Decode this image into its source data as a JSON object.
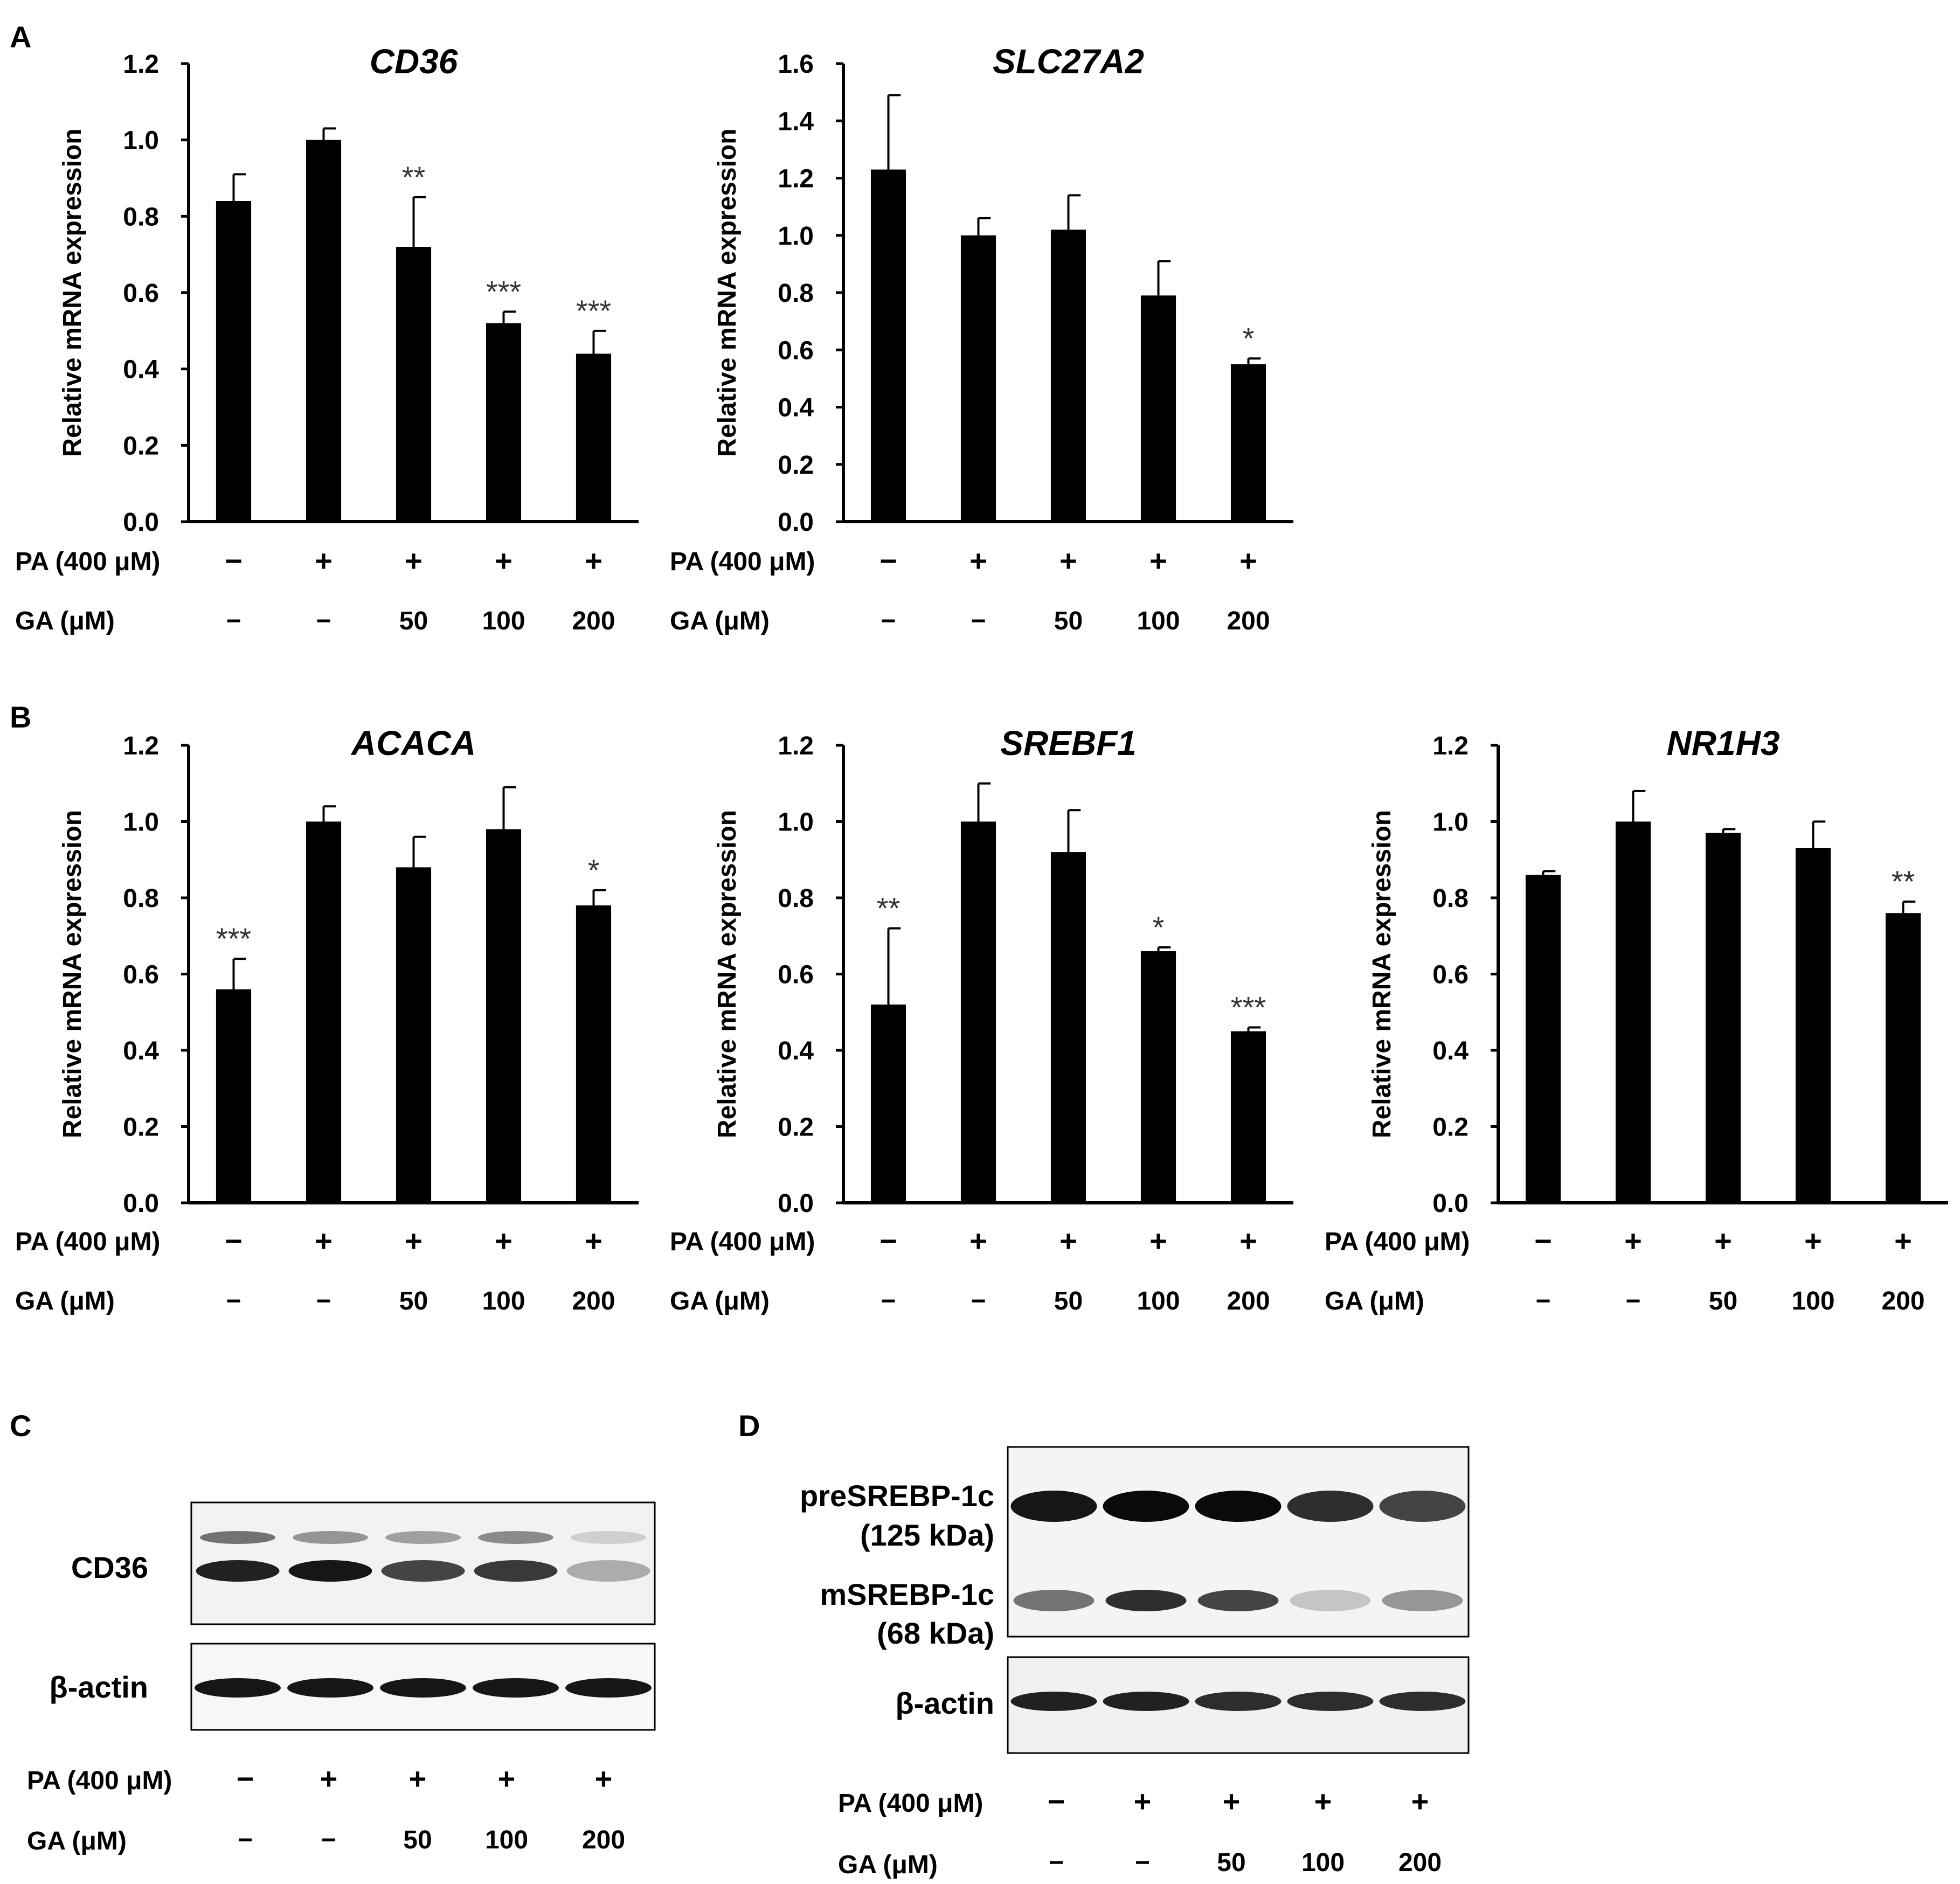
{
  "panel_letters": {
    "A": "A",
    "B": "B",
    "C": "C",
    "D": "D"
  },
  "treatment_rows": {
    "pa_label": "PA (400 μM)",
    "ga_label": "GA (μM)",
    "pa_values": [
      "−",
      "+",
      "+",
      "+",
      "+"
    ],
    "ga_values": [
      "−",
      "−",
      "50",
      "100",
      "200"
    ]
  },
  "chart_data": [
    {
      "type": "bar",
      "title": "CD36",
      "ylabel": "Relative mRNA expression",
      "ylim": [
        0,
        1.2
      ],
      "yticks": [
        "0.0",
        "0.2",
        "0.4",
        "0.6",
        "0.8",
        "1.0",
        "1.2"
      ],
      "categories": [
        "PA − / GA −",
        "PA + / GA −",
        "PA + / GA 50",
        "PA + / GA 100",
        "PA + / GA 200"
      ],
      "values": [
        0.84,
        1.0,
        0.72,
        0.52,
        0.44
      ],
      "errors": [
        0.07,
        0.03,
        0.13,
        0.03,
        0.06
      ],
      "significance": [
        "",
        "",
        "**",
        "***",
        "***"
      ],
      "bar_color": "#000000"
    },
    {
      "type": "bar",
      "title": "SLC27A2",
      "ylabel": "Relative mRNA expression",
      "ylim": [
        0,
        1.6
      ],
      "yticks": [
        "0.0",
        "0.2",
        "0.4",
        "0.6",
        "0.8",
        "1.0",
        "1.2",
        "1.4",
        "1.6"
      ],
      "categories": [
        "PA − / GA −",
        "PA + / GA −",
        "PA + / GA 50",
        "PA + / GA 100",
        "PA + / GA 200"
      ],
      "values": [
        1.23,
        1.0,
        1.02,
        0.79,
        0.55
      ],
      "errors": [
        0.26,
        0.06,
        0.12,
        0.12,
        0.02
      ],
      "significance": [
        "",
        "",
        "",
        "",
        "*"
      ],
      "bar_color": "#000000"
    },
    {
      "type": "bar",
      "title": "ACACA",
      "ylabel": "Relative mRNA expression",
      "ylim": [
        0,
        1.2
      ],
      "yticks": [
        "0.0",
        "0.2",
        "0.4",
        "0.6",
        "0.8",
        "1.0",
        "1.2"
      ],
      "categories": [
        "PA − / GA −",
        "PA + / GA −",
        "PA + / GA 50",
        "PA + / GA 100",
        "PA + / GA 200"
      ],
      "values": [
        0.56,
        1.0,
        0.88,
        0.98,
        0.78
      ],
      "errors": [
        0.08,
        0.04,
        0.08,
        0.11,
        0.04
      ],
      "significance": [
        "***",
        "",
        "",
        "",
        "*"
      ],
      "bar_color": "#000000"
    },
    {
      "type": "bar",
      "title": "SREBF1",
      "ylabel": "Relative mRNA expression",
      "ylim": [
        0,
        1.2
      ],
      "yticks": [
        "0.0",
        "0.2",
        "0.4",
        "0.6",
        "0.8",
        "1.0",
        "1.2"
      ],
      "categories": [
        "PA − / GA −",
        "PA + / GA −",
        "PA + / GA 50",
        "PA + / GA 100",
        "PA + / GA 200"
      ],
      "values": [
        0.52,
        1.0,
        0.92,
        0.66,
        0.45
      ],
      "errors": [
        0.2,
        0.1,
        0.11,
        0.01,
        0.01
      ],
      "significance": [
        "**",
        "",
        "",
        "*",
        "***"
      ],
      "bar_color": "#000000"
    },
    {
      "type": "bar",
      "title": "NR1H3",
      "ylabel": "Relative mRNA expression",
      "ylim": [
        0,
        1.2
      ],
      "yticks": [
        "0.0",
        "0.2",
        "0.4",
        "0.6",
        "0.8",
        "1.0",
        "1.2"
      ],
      "categories": [
        "PA − / GA −",
        "PA + / GA −",
        "PA + / GA 50",
        "PA + / GA 100",
        "PA + / GA 200"
      ],
      "values": [
        0.86,
        1.0,
        0.97,
        0.93,
        0.76
      ],
      "errors": [
        0.01,
        0.08,
        0.01,
        0.07,
        0.03
      ],
      "significance": [
        "",
        "",
        "",
        "",
        "**"
      ],
      "bar_color": "#000000"
    }
  ],
  "blots": {
    "C": {
      "labels": {
        "top": "CD36",
        "bottom": "β-actin"
      },
      "top_band_upper": [
        0.55,
        0.4,
        0.35,
        0.45,
        0.15
      ],
      "top_band_lower": [
        0.9,
        0.95,
        0.75,
        0.8,
        0.3
      ],
      "actin": [
        0.95,
        0.95,
        0.95,
        0.95,
        0.95
      ]
    },
    "D": {
      "labels": {
        "pre_name": "preSREBP-1c",
        "pre_kda": "(125 kDa)",
        "mature_name": "mSREBP-1c",
        "mature_kda": "(68 kDa)",
        "bottom": "β-actin"
      },
      "pre": [
        0.95,
        1.0,
        1.0,
        0.85,
        0.75
      ],
      "mature": [
        0.55,
        0.85,
        0.75,
        0.2,
        0.4
      ],
      "actin": [
        0.9,
        0.9,
        0.85,
        0.85,
        0.85
      ]
    }
  }
}
